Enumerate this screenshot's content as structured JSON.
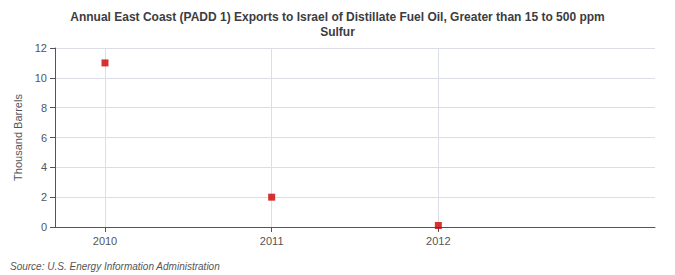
{
  "chart_data": {
    "type": "scatter",
    "title": "Annual East Coast (PADD 1) Exports to Israel of Distillate Fuel Oil, Greater than 15 to 500 ppm\nSulfur",
    "x": [
      2010,
      2011,
      2012
    ],
    "values": [
      11,
      2,
      0.1
    ],
    "color": "#cc0000",
    "marker": "square",
    "ylabel": "Thousand Barrels",
    "xlim": [
      2009.7,
      2013.3
    ],
    "xticks": [
      2010,
      2011,
      2012
    ],
    "ylim": [
      0,
      12
    ],
    "yticks": [
      0,
      2,
      4,
      6,
      8,
      10,
      12
    ],
    "grid": true,
    "annotations": [
      "Source: U.S. Energy Information Administration"
    ]
  }
}
